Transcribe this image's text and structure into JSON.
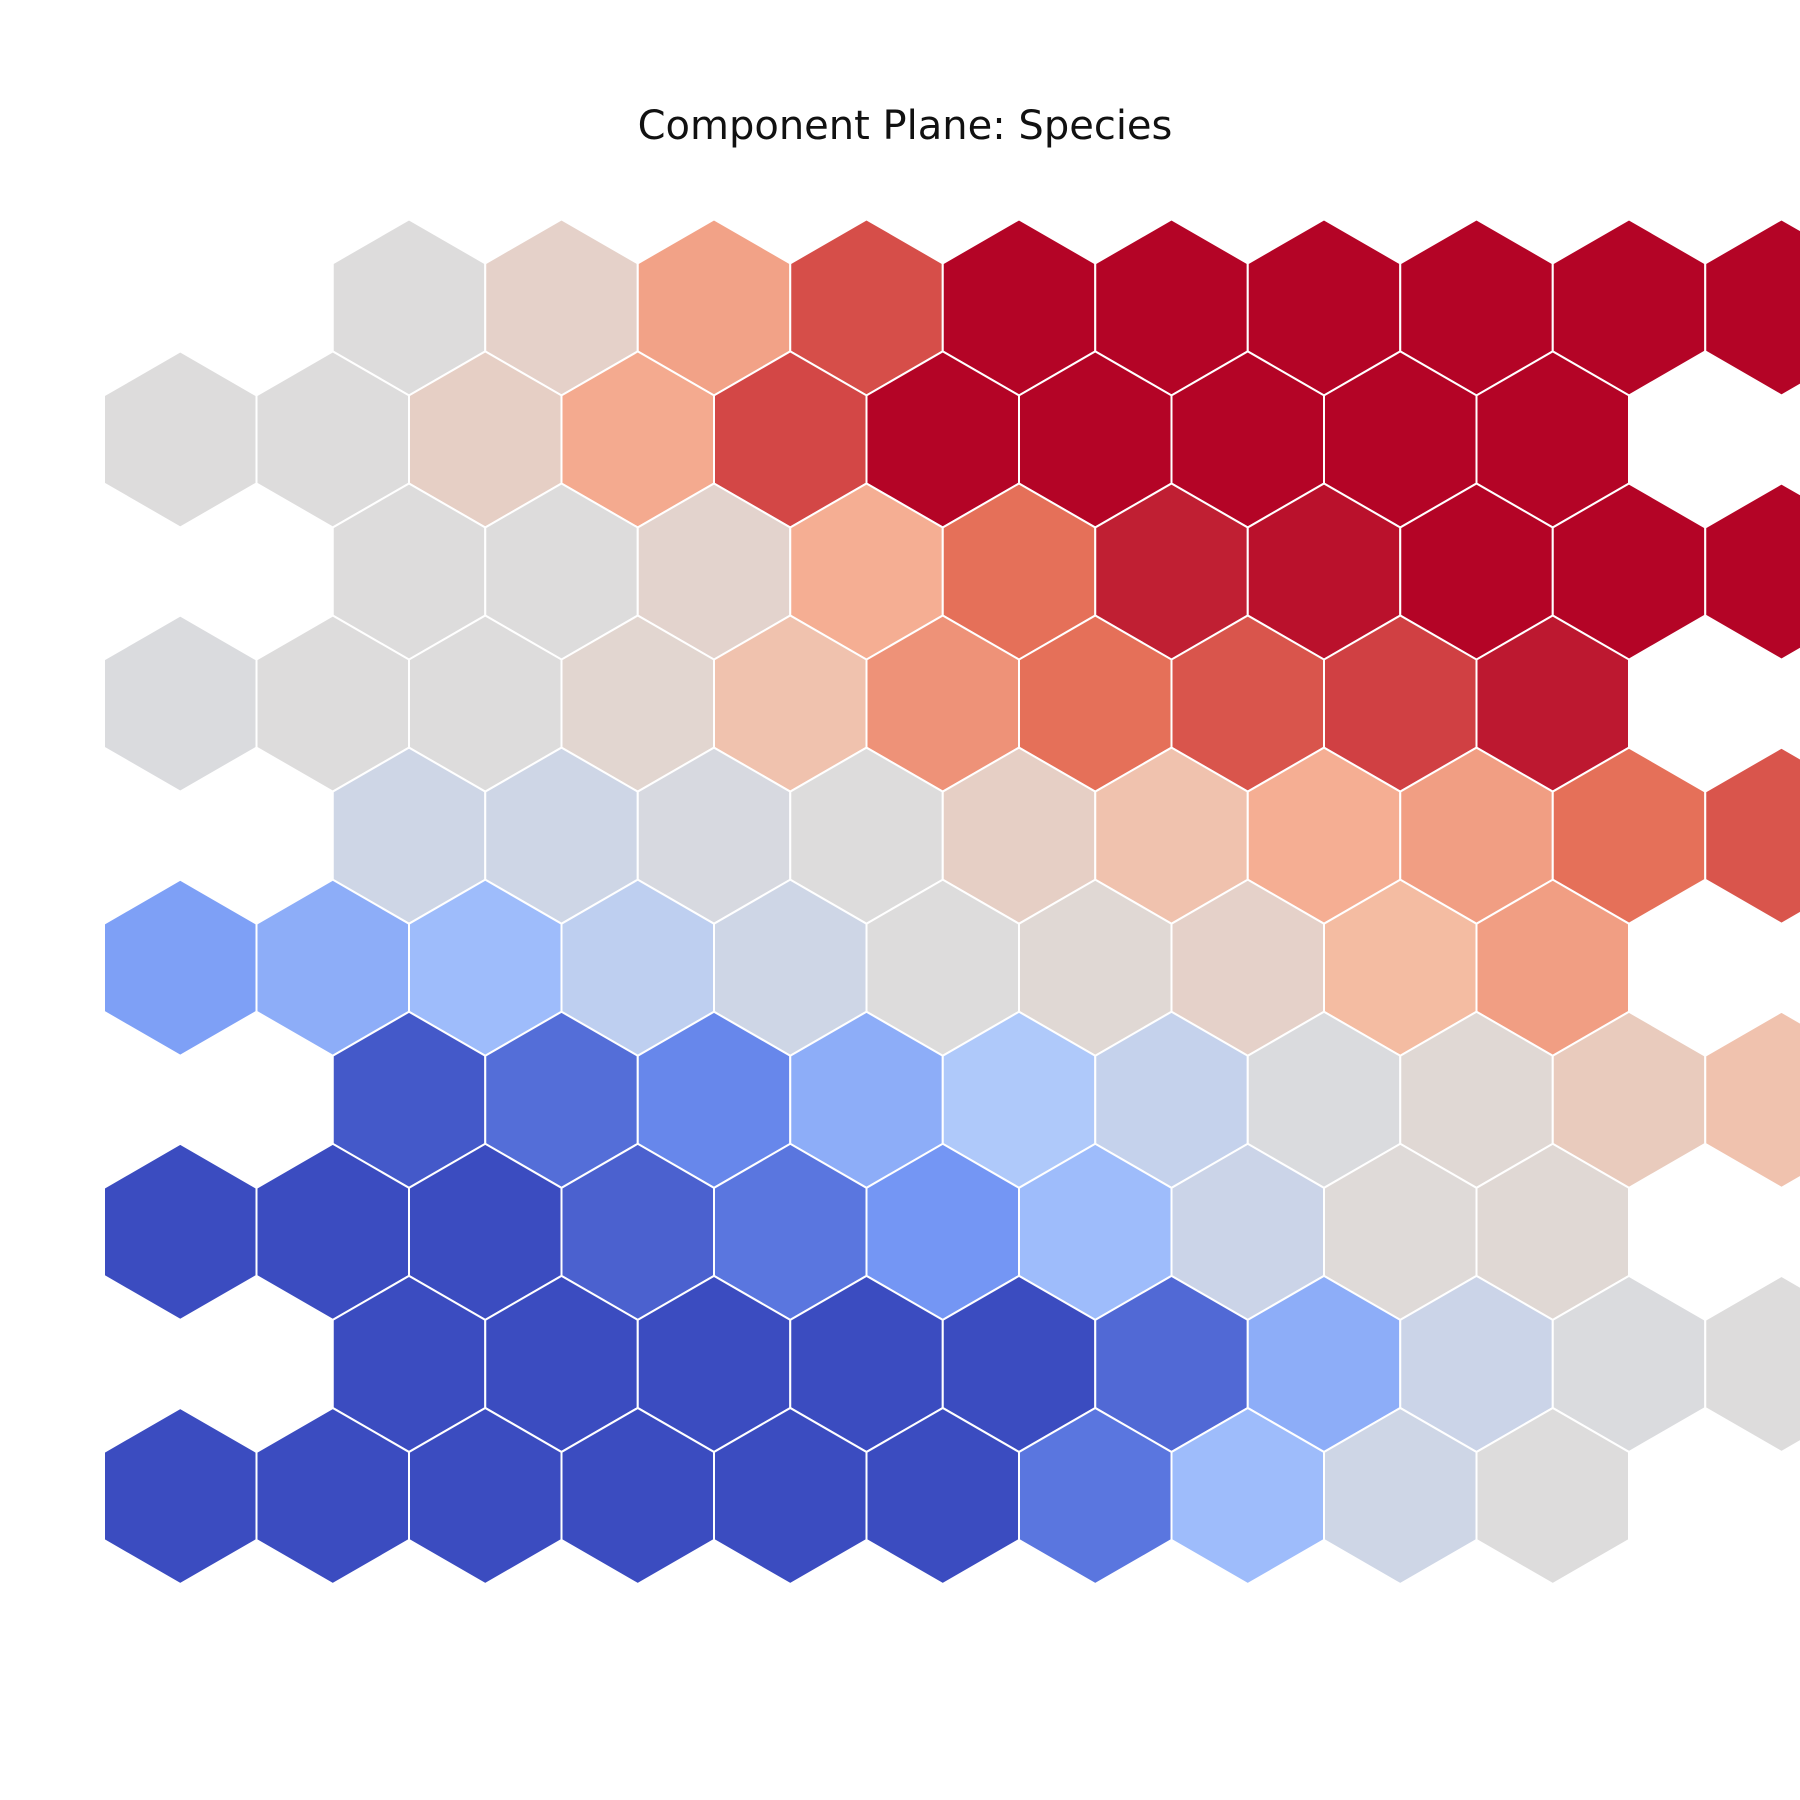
{
  "chart_data": {
    "type": "heatmap",
    "layout": "hexagonal",
    "title": "Component Plane: Species",
    "xlabel": "",
    "ylabel": "",
    "colormap": "coolwarm",
    "colormap_stops": [
      "#3b4cc0",
      "#6f92f3",
      "#aac7fd",
      "#dddcdc",
      "#f7b89c",
      "#e7745b",
      "#b40426"
    ],
    "vmin": 0,
    "vmax": 1,
    "rows": 10,
    "cols": 11,
    "odd_rows_offset": "right",
    "values": [
      [
        null,
        0.5,
        0.55,
        0.72,
        0.89,
        1.0,
        1.0,
        1.0,
        1.0,
        1.0,
        1.0
      ],
      [
        0.5,
        0.5,
        0.56,
        0.7,
        0.9,
        1.0,
        1.0,
        1.0,
        1.0,
        1.0,
        null
      ],
      [
        null,
        0.5,
        0.5,
        0.54,
        0.69,
        0.84,
        0.96,
        0.98,
        1.0,
        1.0,
        1.0
      ],
      [
        0.49,
        0.5,
        0.5,
        0.53,
        0.62,
        0.76,
        0.84,
        0.88,
        0.91,
        0.97,
        null
      ],
      [
        null,
        0.45,
        0.45,
        0.48,
        0.5,
        0.56,
        0.62,
        0.69,
        0.73,
        0.84,
        0.88
      ],
      [
        0.21,
        0.25,
        0.3,
        0.4,
        0.45,
        0.5,
        0.52,
        0.55,
        0.65,
        0.73,
        null
      ],
      [
        null,
        0.03,
        0.08,
        0.14,
        0.25,
        0.35,
        0.42,
        0.49,
        0.52,
        0.58,
        0.62
      ],
      [
        0.0,
        0.0,
        0.0,
        0.05,
        0.1,
        0.18,
        0.3,
        0.44,
        0.51,
        0.52,
        null
      ],
      [
        null,
        0.0,
        0.0,
        0.0,
        0.0,
        0.0,
        0.07,
        0.25,
        0.44,
        0.49,
        0.5
      ],
      [
        0.0,
        0.0,
        0.0,
        0.0,
        0.0,
        0.0,
        0.1,
        0.3,
        0.45,
        0.5,
        null
      ]
    ]
  }
}
